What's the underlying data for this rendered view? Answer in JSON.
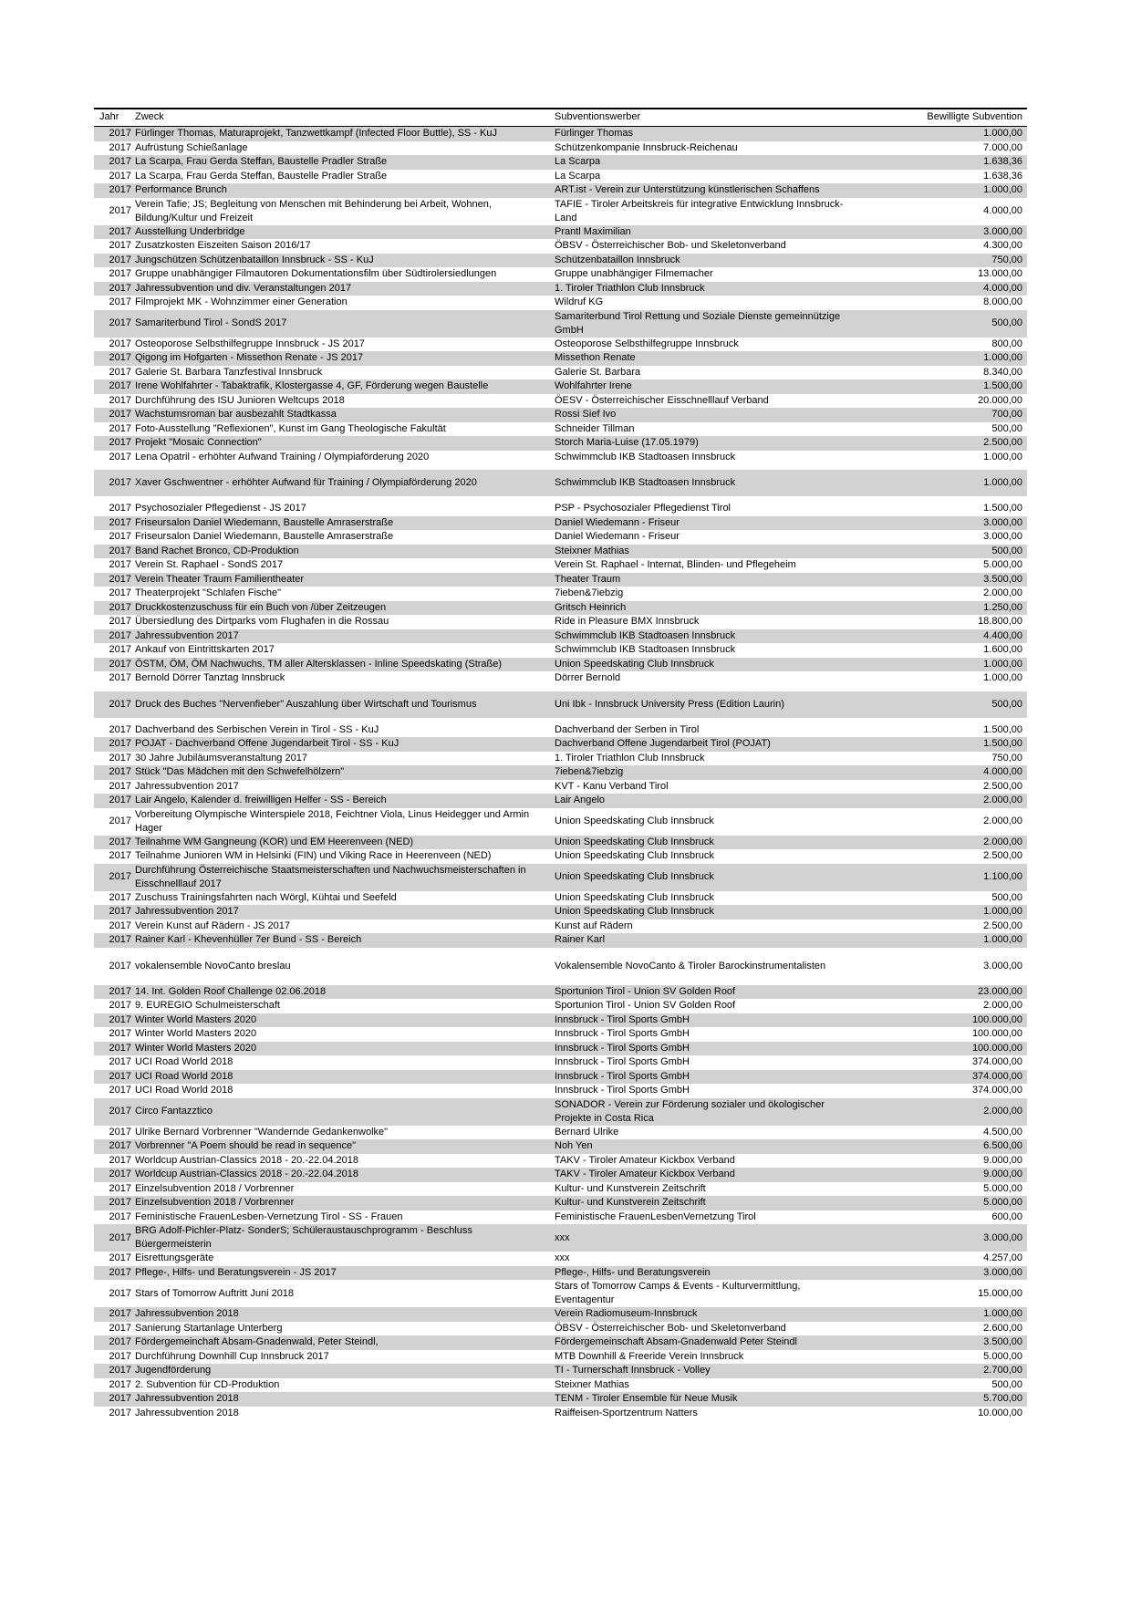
{
  "document": {
    "columns": [
      "Jahr",
      "Zweck",
      "Subventionswerber",
      "Bewilligte Subvention"
    ],
    "rows": [
      {
        "year": "2017",
        "zweck": "Fürlinger Thomas, Maturaprojekt, Tanzwettkampf (Infected Floor Buttle), SS - KuJ",
        "werber": "Fürlinger Thomas",
        "amount": "1.000,00"
      },
      {
        "year": "2017",
        "zweck": "Aufrüstung Schießanlage",
        "werber": "Schützenkompanie Innsbruck-Reichenau",
        "amount": "7.000,00"
      },
      {
        "year": "2017",
        "zweck": "La Scarpa, Frau Gerda Steffan, Baustelle Pradler Straße",
        "werber": "La Scarpa",
        "amount": "1.638,36"
      },
      {
        "year": "2017",
        "zweck": "La Scarpa, Frau Gerda Steffan, Baustelle Pradler Straße",
        "werber": "La Scarpa",
        "amount": "1.638,36"
      },
      {
        "year": "2017",
        "zweck": "Performance Brunch",
        "werber": "ART.ist - Verein zur Unterstützung künstlerischen Schaffens",
        "amount": "1.000,00"
      },
      {
        "year": "2017",
        "zweck": "Verein Tafie; JS; Begleitung von Menschen mit Behinderung bei Arbeit, Wohnen, Bildung/Kultur und Freizeit",
        "werber": "TAFIE - Tiroler Arbeitskreis für integrative Entwicklung Innsbruck-Land",
        "amount": "4.000,00"
      },
      {
        "year": "2017",
        "zweck": "Ausstellung Underbridge",
        "werber": "Prantl Maximilian",
        "amount": "3.000,00"
      },
      {
        "year": "2017",
        "zweck": "Zusatzkosten Eiszeiten Saison 2016/17",
        "werber": "ÖBSV - Österreichischer Bob- und Skeletonverband",
        "amount": "4.300,00"
      },
      {
        "year": "2017",
        "zweck": "Jungschützen Schützenbataillon Innsbruck - SS - KuJ",
        "werber": "Schützenbataillon Innsbruck",
        "amount": "750,00"
      },
      {
        "year": "2017",
        "zweck": "Gruppe unabhängiger Filmautoren  Dokumentationsfilm über Südtirolersiedlungen",
        "werber": "Gruppe unabhängiger Filmemacher",
        "amount": "13.000,00"
      },
      {
        "year": "2017",
        "zweck": "Jahressubvention und div. Veranstaltungen 2017",
        "werber": "1. Tiroler Triathlon Club Innsbruck",
        "amount": "4.000,00"
      },
      {
        "year": "2017",
        "zweck": "Filmprojekt MK - Wohnzimmer einer Generation",
        "werber": "Wildruf KG",
        "amount": "8.000,00"
      },
      {
        "year": "2017",
        "zweck": "Samariterbund Tirol - SondS 2017",
        "werber": "Samariterbund Tirol Rettung und Soziale Dienste gemeinnützige GmbH",
        "amount": "500,00"
      },
      {
        "year": "2017",
        "zweck": "Osteoporose Selbsthilfegruppe Innsbruck - JS 2017",
        "werber": "Osteoporose Selbsthilfegruppe Innsbruck",
        "amount": "800,00"
      },
      {
        "year": "2017",
        "zweck": "Qigong im Hofgarten - Missethon Renate - JS 2017",
        "werber": "Missethon Renate",
        "amount": "1.000,00"
      },
      {
        "year": "2017",
        "zweck": "Galerie St. Barbara  Tanzfestival Innsbruck",
        "werber": "Galerie St. Barbara",
        "amount": "8.340,00"
      },
      {
        "year": "2017",
        "zweck": "Irene Wohlfahrter  - Tabaktrafik, Klostergasse 4, GF, Förderung wegen Baustelle",
        "werber": "Wohlfahrter Irene",
        "amount": "1.500,00"
      },
      {
        "year": "2017",
        "zweck": "Durchführung des ISU Junioren Weltcups 2018",
        "werber": "ÖESV - Österreichischer Eisschnelllauf Verband",
        "amount": "20.000,00"
      },
      {
        "year": "2017",
        "zweck": "Wachstumsroman  bar ausbezahlt Stadtkassa",
        "werber": "Rossi Sief Ivo",
        "amount": "700,00"
      },
      {
        "year": "2017",
        "zweck": "Foto-Ausstellung \"Reflexionen\", Kunst im Gang  Theologische Fakultät",
        "werber": "Schneider Tillman",
        "amount": "500,00"
      },
      {
        "year": "2017",
        "zweck": "Projekt \"Mosaic Connection\"",
        "werber": "Storch Maria-Luise (17.05.1979)",
        "amount": "2.500,00"
      },
      {
        "year": "2017",
        "zweck": "Lena Opatril - erhöhter Aufwand Training / Olympiaförderung 2020",
        "werber": "Schwimmclub IKB Stadtoasen Innsbruck",
        "amount": "1.000,00"
      },
      {
        "year": "2017",
        "zweck": "Xaver Gschwentner - erhöhter Aufwand für Training / Olympiaförderung 2020",
        "werber": "Schwimmclub IKB Stadtoasen Innsbruck",
        "amount": "1.000,00",
        "tall": true
      },
      {
        "year": "2017",
        "zweck": "Psychosozialer Pflegedienst - JS 2017",
        "werber": "PSP - Psychosozialer Pflegedienst Tirol",
        "amount": "1.500,00"
      },
      {
        "year": "2017",
        "zweck": "Friseursalon Daniel Wiedemann, Baustelle Amraserstraße",
        "werber": "Daniel Wiedemann - Friseur",
        "amount": "3.000,00"
      },
      {
        "year": "2017",
        "zweck": "Friseursalon Daniel Wiedemann, Baustelle Amraserstraße",
        "werber": "Daniel Wiedemann - Friseur",
        "amount": "3.000,00"
      },
      {
        "year": "2017",
        "zweck": "Band Rachet Bronco, CD-Produktion",
        "werber": "Steixner Mathias",
        "amount": "500,00"
      },
      {
        "year": "2017",
        "zweck": "Verein St. Raphael - SondS 2017",
        "werber": "Verein St. Raphael - Internat, Blinden- und Pflegeheim",
        "amount": "5.000,00"
      },
      {
        "year": "2017",
        "zweck": "Verein Theater Traum   Familientheater",
        "werber": "Theater Traum",
        "amount": "3.500,00"
      },
      {
        "year": "2017",
        "zweck": "Theaterprojekt \"Schlafen Fische\"",
        "werber": "7ieben&7iebzig",
        "amount": "2.000,00"
      },
      {
        "year": "2017",
        "zweck": "Druckkostenzuschuss für ein Buch von /über Zeitzeugen",
        "werber": "Gritsch Heinrich",
        "amount": "1.250,00"
      },
      {
        "year": "2017",
        "zweck": "Übersiedlung des Dirtparks vom Flughafen in die Rossau",
        "werber": "Ride in Pleasure BMX Innsbruck",
        "amount": "18.800,00"
      },
      {
        "year": "2017",
        "zweck": "Jahressubvention 2017",
        "werber": "Schwimmclub IKB Stadtoasen Innsbruck",
        "amount": "4.400,00"
      },
      {
        "year": "2017",
        "zweck": "Ankauf von Eintrittskarten 2017",
        "werber": "Schwimmclub IKB Stadtoasen Innsbruck",
        "amount": "1.600,00"
      },
      {
        "year": "2017",
        "zweck": "ÖSTM, ÖM, ÖM Nachwuchs, TM aller Altersklassen - Inline Speedskating (Straße)",
        "werber": "Union Speedskating Club Innsbruck",
        "amount": "1.000,00"
      },
      {
        "year": "2017",
        "zweck": "Bernold Dörrer  Tanztag Innsbruck",
        "werber": "Dörrer Bernold",
        "amount": "1.000,00"
      },
      {
        "year": "2017",
        "zweck": "Druck des Buches \"Nervenfieber\"  Auszahlung über Wirtschaft und Tourismus",
        "werber": "Uni Ibk - Innsbruck University Press (Edition Laurin)",
        "amount": "500,00",
        "tall": true
      },
      {
        "year": "2017",
        "zweck": "Dachverband des Serbischen Verein in  Tirol - SS - KuJ",
        "werber": "Dachverband der Serben in Tirol",
        "amount": "1.500,00"
      },
      {
        "year": "2017",
        "zweck": "POJAT - Dachverband Offene Jugendarbeit Tirol - SS - KuJ",
        "werber": "Dachverband Offene Jugendarbeit Tirol (POJAT)",
        "amount": "1.500,00"
      },
      {
        "year": "2017",
        "zweck": "30 Jahre Jubiläumsveranstaltung 2017",
        "werber": "1. Tiroler Triathlon Club Innsbruck",
        "amount": "750,00"
      },
      {
        "year": "2017",
        "zweck": "Stück \"Das Mädchen mit den Schwefelhölzern\"",
        "werber": "7ieben&7iebzig",
        "amount": "4.000,00"
      },
      {
        "year": "2017",
        "zweck": "Jahressubvention 2017",
        "werber": "KVT - Kanu Verband Tirol",
        "amount": "2.500,00"
      },
      {
        "year": "2017",
        "zweck": "Lair Angelo, Kalender d. freiwilligen Helfer - SS - Bereich",
        "werber": "Lair Angelo",
        "amount": "2.000,00"
      },
      {
        "year": "2017",
        "zweck": "Vorbereitung Olympische Winterspiele 2018, Feichtner Viola, Linus Heidegger und Armin Hager",
        "werber": "Union Speedskating Club Innsbruck",
        "amount": "2.000,00"
      },
      {
        "year": "2017",
        "zweck": "Teilnahme WM Gangneung (KOR) und EM Heerenveen (NED)",
        "werber": "Union Speedskating Club Innsbruck",
        "amount": "2.000,00"
      },
      {
        "year": "2017",
        "zweck": "Teilnahme Junioren WM in Helsinki (FIN) und Viking Race in Heerenveen (NED)",
        "werber": "Union Speedskating Club Innsbruck",
        "amount": "2.500,00"
      },
      {
        "year": "2017",
        "zweck": "Durchführung Österreichische Staatsmeisterschaften und Nachwuchsmeisterschaften in Eisschnelllauf 2017",
        "werber": "Union Speedskating Club Innsbruck",
        "amount": "1.100,00"
      },
      {
        "year": "2017",
        "zweck": "Zuschuss Trainingsfahrten nach Wörgl, Kühtai und Seefeld",
        "werber": "Union Speedskating Club Innsbruck",
        "amount": "500,00"
      },
      {
        "year": "2017",
        "zweck": "Jahressubvention 2017",
        "werber": "Union Speedskating Club Innsbruck",
        "amount": "1.000,00"
      },
      {
        "year": "2017",
        "zweck": "Verein Kunst auf Rädern - JS 2017",
        "werber": "Kunst auf Rädern",
        "amount": "2.500,00"
      },
      {
        "year": "2017",
        "zweck": "Rainer Karl - Khevenhüller 7er Bund - SS - Bereich",
        "werber": "Rainer Karl",
        "amount": "1.000,00"
      },
      {
        "year": "2017",
        "zweck": "vokalensemble NovoCanto  breslau",
        "werber": "Vokalensemble NovoCanto & Tiroler Barockinstrumentalisten",
        "amount": "3.000,00",
        "tall": true
      },
      {
        "year": "2017",
        "zweck": "14. Int. Golden Roof Challenge 02.06.2018",
        "werber": "Sportunion Tirol - Union SV Golden Roof",
        "amount": "23.000,00"
      },
      {
        "year": "2017",
        "zweck": "9. EUREGIO Schulmeisterschaft",
        "werber": "Sportunion Tirol - Union SV Golden Roof",
        "amount": "2.000,00"
      },
      {
        "year": "2017",
        "zweck": "Winter World Masters 2020",
        "werber": "Innsbruck - Tirol Sports GmbH",
        "amount": "100.000,00"
      },
      {
        "year": "2017",
        "zweck": "Winter World Masters 2020",
        "werber": "Innsbruck - Tirol Sports GmbH",
        "amount": "100.000,00"
      },
      {
        "year": "2017",
        "zweck": "Winter World Masters 2020",
        "werber": "Innsbruck - Tirol Sports GmbH",
        "amount": "100.000,00"
      },
      {
        "year": "2017",
        "zweck": "UCI Road World 2018",
        "werber": "Innsbruck - Tirol Sports GmbH",
        "amount": "374.000,00"
      },
      {
        "year": "2017",
        "zweck": "UCI Road World 2018",
        "werber": "Innsbruck - Tirol Sports GmbH",
        "amount": "374.000,00"
      },
      {
        "year": "2017",
        "zweck": "UCI Road World 2018",
        "werber": "Innsbruck - Tirol Sports GmbH",
        "amount": "374.000,00"
      },
      {
        "year": "2017",
        "zweck": "Circo Fantazztico",
        "werber": "SONADOR - Verein zur Förderung sozialer und ökologischer Projekte in Costa Rica",
        "amount": "2.000,00"
      },
      {
        "year": "2017",
        "zweck": "Ulrike Bernard  Vorbrenner \"Wandernde Gedankenwolke\"",
        "werber": "Bernard Ulrike",
        "amount": "4.500,00"
      },
      {
        "year": "2017",
        "zweck": "Vorbrenner \"A Poem should be read in sequence\"",
        "werber": "Noh Yen",
        "amount": "6.500,00"
      },
      {
        "year": "2017",
        "zweck": "Worldcup Austrian-Classics 2018 - 20.-22.04.2018",
        "werber": "TAKV - Tiroler Amateur Kickbox Verband",
        "amount": "9.000,00"
      },
      {
        "year": "2017",
        "zweck": "Worldcup Austrian-Classics 2018 - 20.-22.04.2018",
        "werber": "TAKV - Tiroler Amateur Kickbox Verband",
        "amount": "9.000,00"
      },
      {
        "year": "2017",
        "zweck": "Einzelsubvention 2018 / Vorbrenner",
        "werber": "Kultur- und Kunstverein Zeitschrift",
        "amount": "5.000,00"
      },
      {
        "year": "2017",
        "zweck": "Einzelsubvention 2018 / Vorbrenner",
        "werber": "Kultur- und Kunstverein Zeitschrift",
        "amount": "5.000,00"
      },
      {
        "year": "2017",
        "zweck": "Feministische FrauenLesben-Vernetzung Tirol - SS - Frauen",
        "werber": "Feministische FrauenLesbenVernetzung Tirol",
        "amount": "600,00"
      },
      {
        "year": "2017",
        "zweck": "BRG Adolf-Pichler-Platz- SonderS; Schüleraustauschprogramm - Beschluss Büergermeisterin",
        "werber": "xxx",
        "amount": "3.000,00"
      },
      {
        "year": "2017",
        "zweck": "Eisrettungsgeräte",
        "werber": "xxx",
        "amount": "4.257,00"
      },
      {
        "year": "2017",
        "zweck": "Pflege-, Hilfs- und Beratungsverein - JS 2017",
        "werber": "Pflege-, Hilfs- und Beratungsverein",
        "amount": "3.000,00"
      },
      {
        "year": "2017",
        "zweck": "Stars of Tomorrow  Auftritt Juni 2018",
        "werber": "Stars of Tomorrow Camps & Events - Kulturvermittlung, Eventagentur",
        "amount": "15.000,00"
      },
      {
        "year": "2017",
        "zweck": "Jahressubvention 2018",
        "werber": "Verein Radiomuseum-Innsbruck",
        "amount": "1.000,00"
      },
      {
        "year": "2017",
        "zweck": "Sanierung Startanlage Unterberg",
        "werber": "ÖBSV - Österreichischer Bob- und Skeletonverband",
        "amount": "2.600,00"
      },
      {
        "year": "2017",
        "zweck": "Fördergemeinchaft Absam-Gnadenwald, Peter Steindl,",
        "werber": "Fördergemeinschaft Absam-Gnadenwald Peter Steindl",
        "amount": "3.500,00"
      },
      {
        "year": "2017",
        "zweck": "Durchführung Downhill Cup Innsbruck 2017",
        "werber": "MTB Downhill & Freeride Verein Innsbruck",
        "amount": "5.000,00"
      },
      {
        "year": "2017",
        "zweck": "Jugendförderung",
        "werber": "TI - Turnerschaft Innsbruck - Volley",
        "amount": "2.700,00"
      },
      {
        "year": "2017",
        "zweck": "2. Subvention für CD-Produktion",
        "werber": "Steixner Mathias",
        "amount": "500,00"
      },
      {
        "year": "2017",
        "zweck": "Jahressubvention 2018",
        "werber": "TENM - Tiroler Ensemble für Neue Musik",
        "amount": "5.700,00"
      },
      {
        "year": "2017",
        "zweck": "Jahressubvention 2018",
        "werber": "Raiffeisen-Sportzentrum Natters",
        "amount": "10.000,00"
      }
    ]
  }
}
